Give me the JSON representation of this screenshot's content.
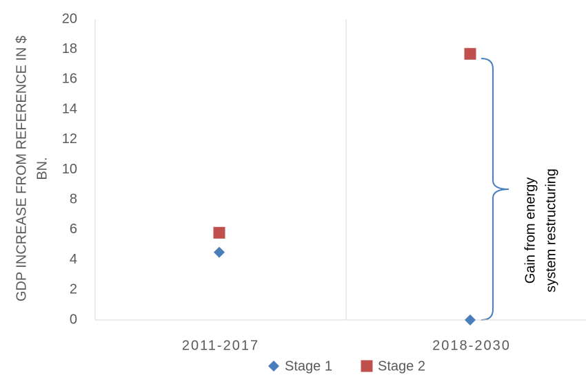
{
  "chart_data": {
    "type": "scatter",
    "y_label": [
      "GDP INCREASE FROM REFERENCE IN $",
      "BN."
    ],
    "annotation": [
      "Gain from energy",
      "system restructuring"
    ],
    "categories": [
      "2011-2017",
      "2018-2030"
    ],
    "series": [
      {
        "name": "Stage 1",
        "color": "#4a7ebb",
        "marker": "diamond",
        "values": [
          4.5,
          0
        ]
      },
      {
        "name": "Stage 2",
        "color": "#c0504d",
        "marker": "square",
        "values": [
          5.8,
          17.7
        ]
      }
    ],
    "ylim": [
      0,
      20
    ],
    "yticks": [
      0,
      2,
      4,
      6,
      8,
      10,
      12,
      14,
      16,
      18,
      20
    ],
    "legend": "bottom"
  }
}
